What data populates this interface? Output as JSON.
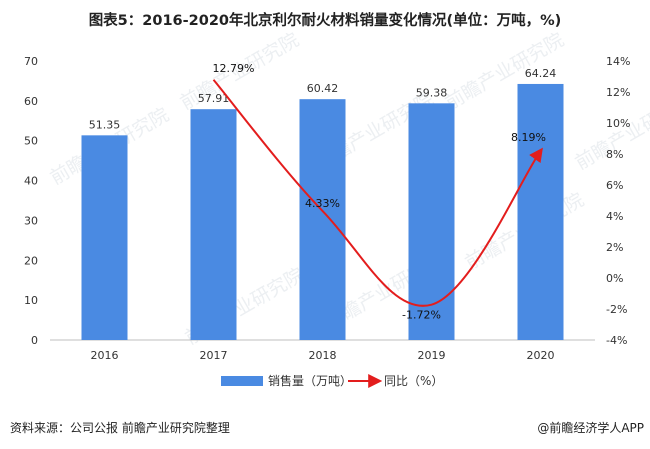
{
  "title": "图表5：2016-2020年北京利尔耐火材料销量变化情况(单位：万吨，%)",
  "source": "资料来源：公司公报 前瞻产业研究院整理",
  "brand": "@前瞻经济学人APP",
  "watermark": "前瞻产业研究院",
  "colors": {
    "bar": "#4a8ae2",
    "line": "#e31d1d",
    "axis": "#bfbfbf",
    "text": "#333333"
  },
  "chart_data": {
    "type": "bar",
    "categories": [
      "2016",
      "2017",
      "2018",
      "2019",
      "2020"
    ],
    "series": [
      {
        "name": "销售量（万吨）",
        "type": "bar",
        "axis": "left",
        "values": [
          51.35,
          57.91,
          60.42,
          59.38,
          64.24
        ],
        "labels": [
          "51.35",
          "57.91",
          "60.42",
          "59.38",
          "64.24"
        ]
      },
      {
        "name": "同比（%）",
        "type": "line",
        "axis": "right",
        "values": [
          null,
          12.79,
          4.33,
          -1.72,
          8.19
        ],
        "labels": [
          "",
          "12.79%",
          "4.33%",
          "-1.72%",
          "8.19%"
        ]
      }
    ],
    "y_left": {
      "ylim": [
        0,
        70
      ],
      "ticks": [
        "0",
        "10",
        "20",
        "30",
        "40",
        "50",
        "60",
        "70"
      ]
    },
    "y_right": {
      "ylim": [
        -4,
        14
      ],
      "ticks": [
        "-4%",
        "-2%",
        "0%",
        "2%",
        "4%",
        "6%",
        "8%",
        "10%",
        "12%",
        "14%"
      ]
    },
    "grid": false,
    "legend": "bottom"
  }
}
